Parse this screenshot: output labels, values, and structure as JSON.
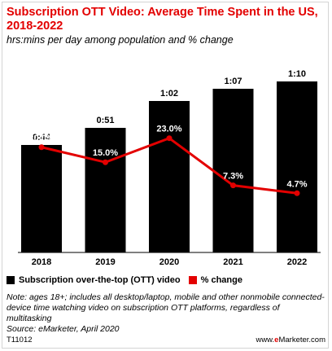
{
  "header": {
    "title": "Subscription OTT Video: Average Time Spent in the US, 2018-2022",
    "subtitle": "hrs:mins per day among population and % change"
  },
  "chart_data": {
    "type": "bar",
    "categories": [
      "2018",
      "2019",
      "2020",
      "2021",
      "2022"
    ],
    "series": [
      {
        "name": "Subscription over-the-top (OTT) video",
        "type": "bar",
        "values": [
          44,
          51,
          62,
          67,
          70
        ],
        "labels": [
          "0:44",
          "0:51",
          "1:02",
          "1:07",
          "1:10"
        ],
        "color": "#000000"
      },
      {
        "name": "% change",
        "type": "line",
        "values": [
          20.0,
          15.0,
          23.0,
          7.3,
          4.7
        ],
        "labels": [
          "20.0%",
          "15.0%",
          "23.0%",
          "7.3%",
          "4.7%"
        ],
        "color": "#e30000"
      }
    ],
    "ylim_minutes": [
      0,
      80
    ],
    "ylim_percent": [
      -15,
      50
    ],
    "grid": false,
    "legend_position": "bottom"
  },
  "legend": {
    "bar_label": "Subscription over-the-top (OTT) video",
    "line_label": "% change"
  },
  "note": "Note: ages 18+; includes all desktop/laptop, mobile and other nonmobile connected-device time watching video on subscription OTT platforms, regardless of multitasking",
  "source": "Source: eMarketer, April 2020",
  "footer": {
    "id": "T11012",
    "logo_prefix": "www.",
    "logo_e": "e",
    "logo_suffix": "Marketer.com"
  }
}
